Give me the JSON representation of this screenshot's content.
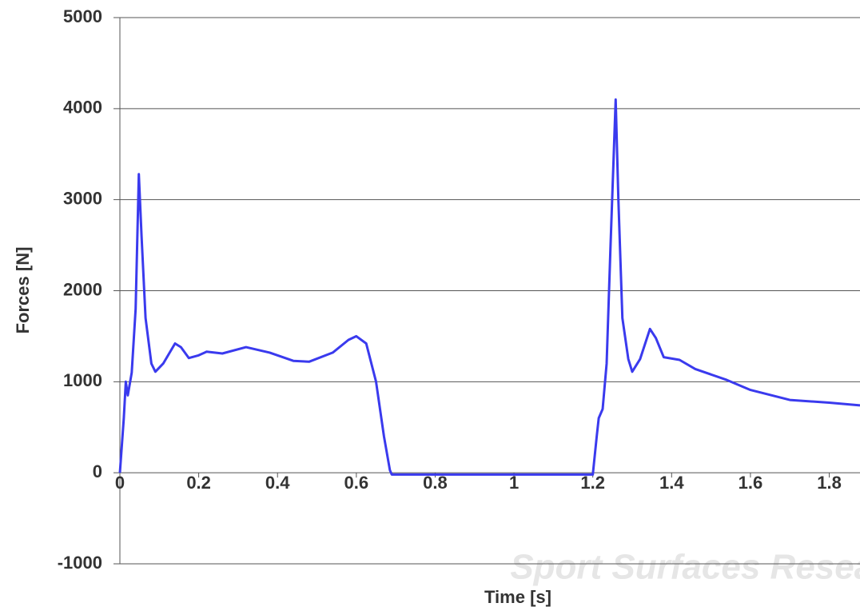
{
  "chart_data": {
    "type": "line",
    "x_label": "Time [s]",
    "y_label": "Forces [N]",
    "watermark": "Sport Surfaces Research",
    "xlim": [
      0,
      1.878
    ],
    "xticks": [
      0,
      0.2,
      0.4,
      0.6,
      0.8,
      1,
      1.2,
      1.4,
      1.6,
      1.8
    ],
    "ylim": [
      -1000,
      5000
    ],
    "yticks": [
      -1000,
      0,
      1000,
      2000,
      3000,
      4000,
      5000
    ],
    "grid": true,
    "series": [
      {
        "color": "#3a3aee",
        "x": [
          0,
          0.01,
          0.015,
          0.02,
          0.03,
          0.04,
          0.048,
          0.055,
          0.065,
          0.08,
          0.09,
          0.11,
          0.14,
          0.155,
          0.175,
          0.2,
          0.22,
          0.26,
          0.32,
          0.38,
          0.44,
          0.48,
          0.54,
          0.58,
          0.6,
          0.625,
          0.65,
          0.67,
          0.685,
          0.69,
          1.2,
          1.21,
          1.215,
          1.225,
          1.235,
          1.245,
          1.258,
          1.265,
          1.275,
          1.29,
          1.3,
          1.32,
          1.345,
          1.36,
          1.38,
          1.42,
          1.46,
          1.54,
          1.6,
          1.7,
          1.8,
          1.878
        ],
        "values": [
          0,
          600,
          1000,
          850,
          1100,
          1800,
          3280,
          2600,
          1700,
          1200,
          1110,
          1200,
          1420,
          1380,
          1260,
          1290,
          1330,
          1310,
          1380,
          1320,
          1230,
          1220,
          1320,
          1460,
          1500,
          1420,
          1000,
          400,
          30,
          -20,
          -20,
          400,
          600,
          700,
          1200,
          2500,
          4100,
          3000,
          1700,
          1250,
          1110,
          1250,
          1580,
          1480,
          1270,
          1240,
          1140,
          1020,
          910,
          800,
          770,
          740
        ]
      }
    ]
  }
}
